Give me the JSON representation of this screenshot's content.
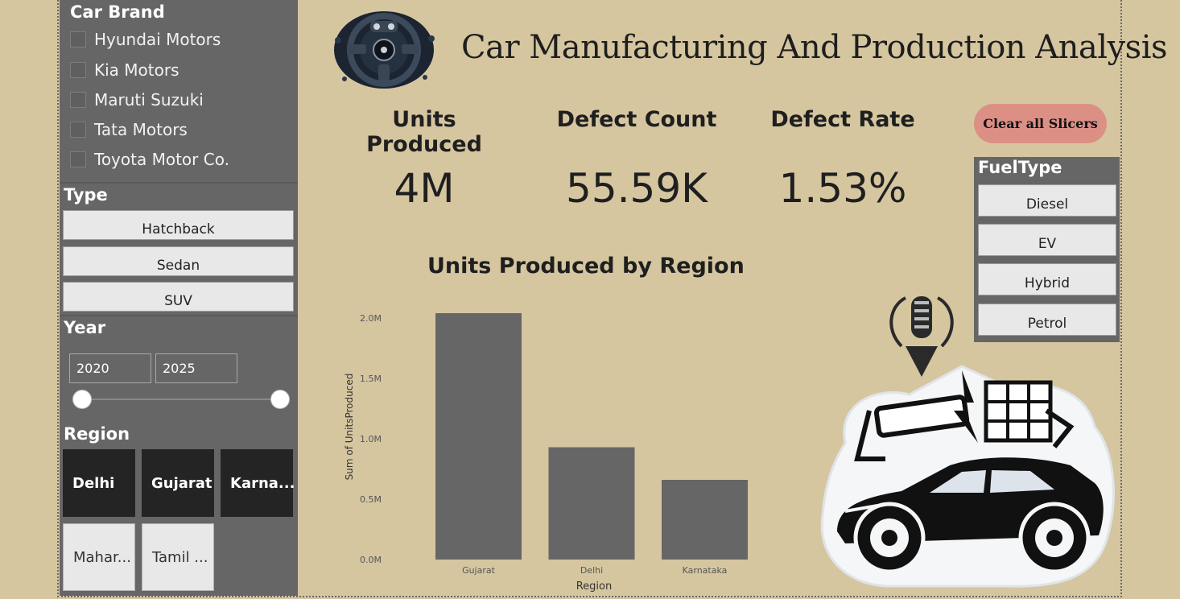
{
  "sidebar": {
    "brand": {
      "title": "Car Brand",
      "items": [
        "Hyundai Motors",
        "Kia Motors",
        "Maruti Suzuki",
        "Tata Motors",
        "Toyota Motor Co."
      ]
    },
    "type": {
      "title": "Type",
      "items": [
        "Hatchback",
        "Sedan",
        "SUV"
      ]
    },
    "year": {
      "title": "Year",
      "from": "2020",
      "to": "2025"
    },
    "region": {
      "title": "Region",
      "tiles": [
        {
          "label": "Delhi",
          "selected": true
        },
        {
          "label": "Gujarat",
          "selected": true
        },
        {
          "label": "Karna...",
          "selected": true
        },
        {
          "label": "Mahar...",
          "selected": false
        },
        {
          "label": "Tamil ...",
          "selected": false
        }
      ]
    }
  },
  "header": {
    "title": "Car Manufacturing And Production Analysis",
    "logo_icon": "steering-wheel-icon"
  },
  "kpis": [
    {
      "label": "Units Produced",
      "value": "4M"
    },
    {
      "label": "Defect Count",
      "value": "55.59K"
    },
    {
      "label": "Defect Rate",
      "value": "1.53%"
    }
  ],
  "clear_button": "Clear all Slicers",
  "fuel": {
    "title": "FuelType",
    "items": [
      "Diesel",
      "EV",
      "Hybrid",
      "Petrol"
    ]
  },
  "colors": {
    "background": "#d5c6a0",
    "panel": "#666666",
    "bar": "#666666",
    "accent": "#dc8f85",
    "tile_selected": "#242424"
  },
  "chart_data": {
    "type": "bar",
    "title": "Units Produced by Region",
    "xlabel": "Region",
    "ylabel": "Sum of UnitsProduced",
    "categories": [
      "Gujarat",
      "Delhi",
      "Karnataka"
    ],
    "values": [
      2040000,
      930000,
      660000
    ],
    "ylim": [
      0,
      2000000
    ],
    "yticks": [
      "0.0M",
      "0.5M",
      "1.0M",
      "1.5M",
      "2.0M"
    ],
    "grid": false
  }
}
